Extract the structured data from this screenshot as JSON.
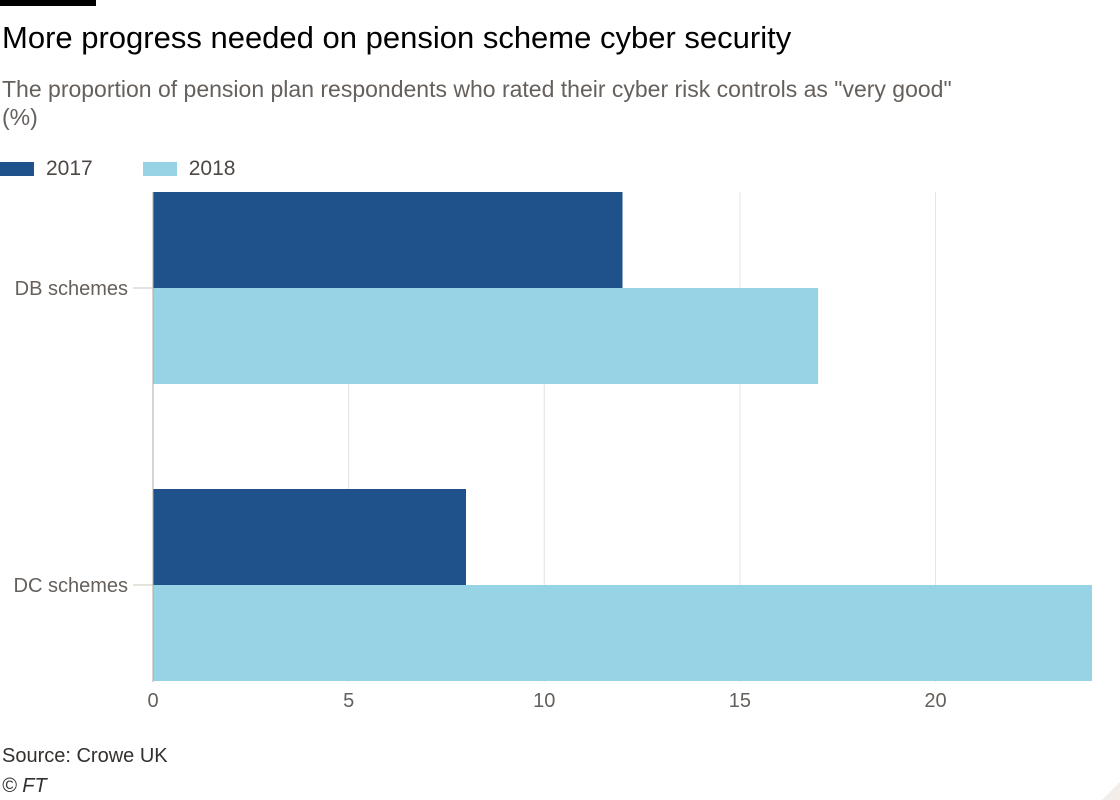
{
  "title": "More progress needed on pension scheme cyber security",
  "subtitle": "The proportion of pension plan respondents who rated their cyber risk controls as \"very good\" (%)",
  "source": "Source: Crowe UK",
  "credit": "© FT",
  "colors": {
    "series_2017": "#1f528a",
    "series_2018": "#96d3e5",
    "grid": "#e6e2de",
    "axis_text": "#66605c"
  },
  "chart_data": {
    "type": "bar",
    "orientation": "horizontal",
    "title": "More progress needed on pension scheme cyber security",
    "subtitle": "The proportion of pension plan respondents who rated their cyber risk controls as \"very good\" (%)",
    "categories": [
      "DB schemes",
      "DC schemes"
    ],
    "series": [
      {
        "name": "2017",
        "values": [
          12,
          8
        ],
        "color": "#1f528a"
      },
      {
        "name": "2018",
        "values": [
          17,
          24
        ],
        "color": "#96d3e5"
      }
    ],
    "xlim": [
      0,
      24
    ],
    "xticks": [
      0,
      5,
      10,
      15,
      20
    ],
    "grid": true,
    "legend": "top-left"
  }
}
